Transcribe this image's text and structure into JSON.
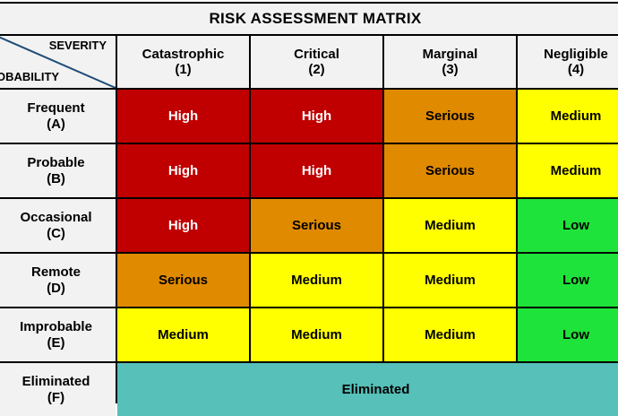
{
  "title": "RISK ASSESSMENT MATRIX",
  "corner": {
    "severity_label": "SEVERITY",
    "probability_label": "OBABILITY"
  },
  "severity_columns": [
    {
      "name": "Catastrophic",
      "code": "(1)"
    },
    {
      "name": "Critical",
      "code": "(2)"
    },
    {
      "name": "Marginal",
      "code": "(3)"
    },
    {
      "name": "Negligible",
      "code": "(4)"
    }
  ],
  "probability_rows": [
    {
      "name": "Frequent",
      "code": "(A)",
      "cells": [
        "High",
        "High",
        "Serious",
        "Medium"
      ]
    },
    {
      "name": "Probable",
      "code": "(B)",
      "cells": [
        "High",
        "High",
        "Serious",
        "Medium"
      ]
    },
    {
      "name": "Occasional",
      "code": "(C)",
      "cells": [
        "High",
        "Serious",
        "Medium",
        "Low"
      ]
    },
    {
      "name": "Remote",
      "code": "(D)",
      "cells": [
        "Serious",
        "Medium",
        "Medium",
        "Low"
      ]
    },
    {
      "name": "Improbable",
      "code": "(E)",
      "cells": [
        "Medium",
        "Medium",
        "Medium",
        "Low"
      ]
    },
    {
      "name": "Eliminated",
      "code": "(F)",
      "merged": "Eliminated"
    }
  ],
  "colors": {
    "High": "#c00000",
    "Serious": "#e08a00",
    "Medium": "#ffff00",
    "Low": "#1ee33a",
    "Eliminated": "#56c0b9",
    "header_bg": "#f2f2f2",
    "diagonal": "#1f4e79"
  }
}
